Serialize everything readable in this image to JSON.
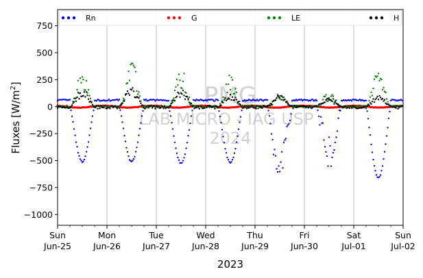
{
  "chart_data": {
    "type": "scatter",
    "title": "",
    "xlabel": "2023",
    "ylabel_text": "Fluxes [W/m",
    "ylabel_sup": "2",
    "ylabel_close": "]",
    "ylim": [
      -1100,
      900
    ],
    "y_ticks": [
      -1000,
      -750,
      -500,
      -250,
      0,
      250,
      500,
      750
    ],
    "y_tick_labels": [
      "−1000",
      "−750",
      "−500",
      "−250",
      "0",
      "250",
      "500",
      "750"
    ],
    "xlim_days": [
      0,
      7
    ],
    "x_ticks": [
      {
        "day": 0,
        "weekday": "Sun",
        "date": "Jun-25"
      },
      {
        "day": 1,
        "weekday": "Mon",
        "date": "Jun-26"
      },
      {
        "day": 2,
        "weekday": "Tue",
        "date": "Jun-27"
      },
      {
        "day": 3,
        "weekday": "Wed",
        "date": "Jun-28"
      },
      {
        "day": 4,
        "weekday": "Thu",
        "date": "Jun-29"
      },
      {
        "day": 5,
        "weekday": "Fri",
        "date": "Jun-30"
      },
      {
        "day": 6,
        "weekday": "Sat",
        "date": "Jul-01"
      },
      {
        "day": 7,
        "weekday": "Sun",
        "date": "Jul-02"
      }
    ],
    "grid": "vertical",
    "legend_placement": "top",
    "watermark": [
      "PMG",
      "LAB MICRO - IAG USP",
      "2024"
    ],
    "series": [
      {
        "name": "Rn",
        "color": "#0000ff",
        "key": "Rn"
      },
      {
        "name": "G",
        "color": "#ff0000",
        "key": "G"
      },
      {
        "name": "LE",
        "color": "#008000",
        "key": "LE"
      },
      {
        "name": "H",
        "color": "#000000",
        "key": "H"
      }
    ],
    "daily_peaks": {
      "day_index": [
        0,
        1,
        2,
        3,
        4,
        5,
        6
      ],
      "Rn_min": [
        -510,
        -510,
        -525,
        -520,
        -680,
        -560,
        -660
      ],
      "LE_max": [
        330,
        450,
        360,
        300,
        120,
        130,
        380
      ],
      "H_max": [
        160,
        180,
        155,
        120,
        110,
        85,
        100
      ],
      "G_min": [
        -20,
        -20,
        -20,
        -20,
        -20,
        -10,
        -10
      ]
    },
    "night_levels": {
      "Rn": 60,
      "G": 10,
      "LE": 0,
      "H": 0
    }
  }
}
